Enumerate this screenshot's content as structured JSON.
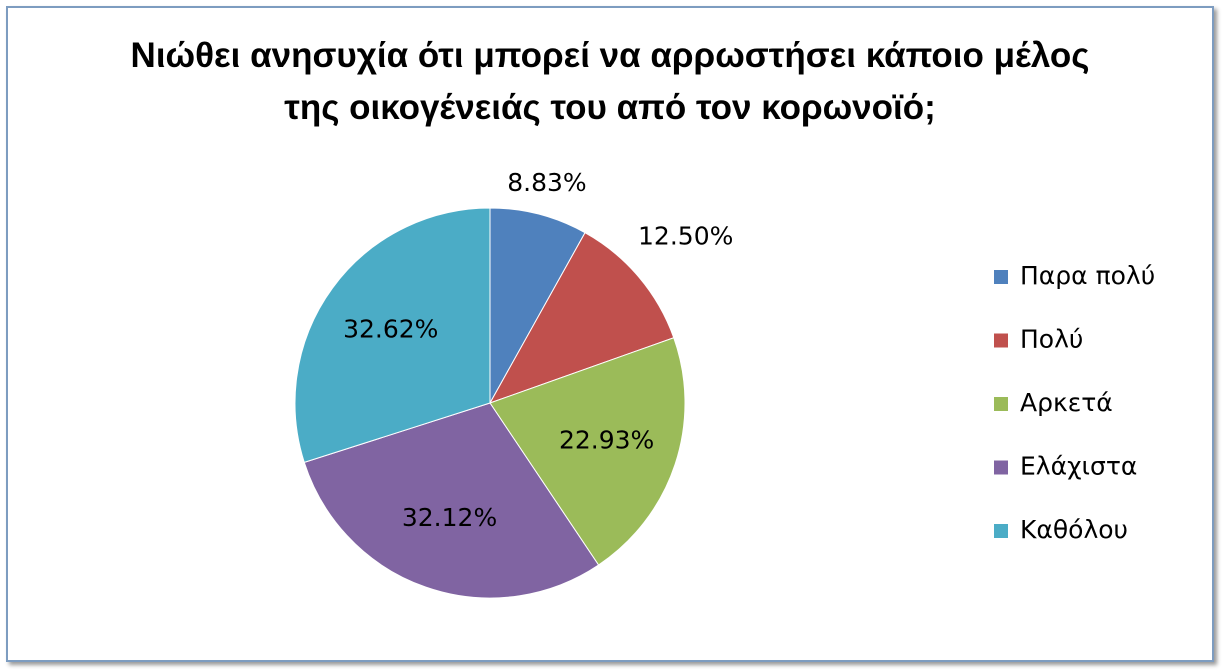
{
  "chart_data": {
    "type": "pie",
    "title": "Νιώθει ανησυχία ότι μπορεί να αρρωστήσει κάποιο μέλος της οικογένειάς του από τον κορωνοϊό;",
    "categories": [
      "Παρα πολύ",
      "Πολύ",
      "Αρκετά",
      "Ελάχιστα",
      "Καθόλου"
    ],
    "values": [
      8.83,
      12.5,
      22.93,
      32.12,
      32.62
    ],
    "value_labels": [
      "8.83%",
      "12.50%",
      "22.93%",
      "32.12%",
      "32.62%"
    ],
    "colors": [
      "#4f81bd",
      "#c0504d",
      "#9bbb59",
      "#8064a2",
      "#4bacc6"
    ],
    "legend": "right"
  }
}
